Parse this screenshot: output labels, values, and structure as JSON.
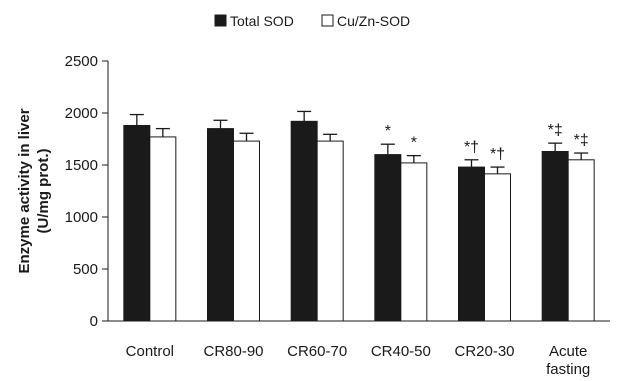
{
  "chart_data": {
    "type": "bar",
    "title": "",
    "xlabel": "",
    "ylabel_lines": [
      "Enzyme activity  in liver",
      "(U/mg prot.)"
    ],
    "ylim": [
      0,
      2500
    ],
    "yticks": [
      0,
      500,
      1000,
      1500,
      2000,
      2500
    ],
    "categories": [
      [
        "Control"
      ],
      [
        "CR80-90"
      ],
      [
        "CR60-70"
      ],
      [
        "CR40-50"
      ],
      [
        "CR20-30"
      ],
      [
        "Acute",
        "fasting"
      ]
    ],
    "grid": false,
    "legend_position": "top",
    "series": [
      {
        "name": "Total SOD",
        "color": "#1a1a1a",
        "values": [
          1880,
          1850,
          1920,
          1600,
          1480,
          1630
        ],
        "errors": [
          105,
          80,
          95,
          100,
          70,
          80
        ],
        "annotations": [
          "",
          "",
          "",
          "*",
          "*†",
          "*‡"
        ]
      },
      {
        "name": "Cu/Zn-SOD",
        "color": "#ffffff",
        "values": [
          1770,
          1730,
          1730,
          1520,
          1415,
          1550
        ],
        "errors": [
          80,
          75,
          65,
          70,
          65,
          65
        ],
        "annotations": [
          "",
          "",
          "",
          "*",
          "*†",
          "*‡"
        ]
      }
    ]
  }
}
